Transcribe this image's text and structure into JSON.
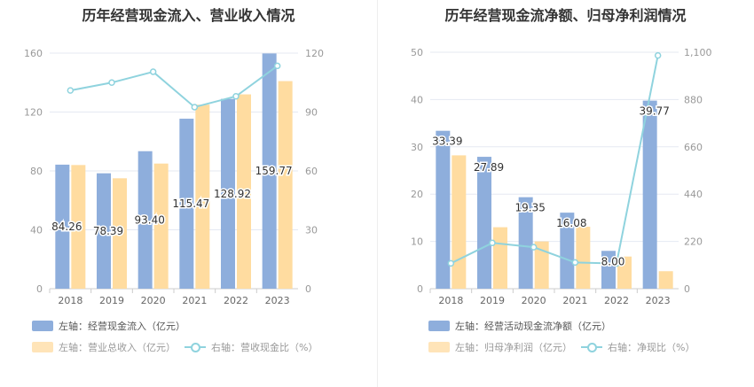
{
  "colors": {
    "bar1": "#8eaedc",
    "bar2": "#ffdca0",
    "line": "#8fd3de",
    "grid": "#e5e9f2",
    "axis": "#999999"
  },
  "left": {
    "title": "历年经营现金流入、营业收入情况",
    "legend": {
      "bar1": "左轴：经营现金流入（亿元）",
      "bar2": "左轴：营业总收入（亿元）",
      "line": "右轴：营收现金比（%）"
    }
  },
  "right": {
    "title": "历年经营现金流净额、归母净利润情况",
    "legend": {
      "bar1": "左轴：经营活动现金流净额（亿元）",
      "bar2": "左轴：归母净利润（亿元）",
      "line": "右轴：净现比（%）"
    }
  },
  "chart_data": [
    {
      "type": "bar",
      "categories": [
        "2018",
        "2019",
        "2020",
        "2021",
        "2022",
        "2023"
      ],
      "series": [
        {
          "name": "左轴：经营现金流入（亿元）",
          "axis": "left",
          "values": [
            84.26,
            78.39,
            93.4,
            115.47,
            128.92,
            159.77
          ],
          "labels": [
            "84.26",
            "78.39",
            "93.40",
            "115.47",
            "128.92",
            "159.77"
          ]
        },
        {
          "name": "左轴：营业总收入（亿元）",
          "axis": "left",
          "values": [
            84,
            75,
            85,
            125,
            132,
            141
          ]
        },
        {
          "name": "右轴：营收现金比（%）",
          "axis": "right",
          "type": "line",
          "values": [
            101,
            105,
            110.5,
            92.5,
            98,
            113.5
          ]
        }
      ],
      "left_axis": {
        "ylim": [
          0,
          160
        ],
        "ticks": [
          0,
          40,
          80,
          120,
          160
        ],
        "tick_labels": [
          "0",
          "40",
          "80",
          "120",
          "160"
        ]
      },
      "right_axis": {
        "ylim": [
          0,
          120
        ],
        "ticks": [
          0,
          30,
          60,
          90,
          120
        ],
        "tick_labels": [
          "0",
          "30",
          "60",
          "90",
          "120"
        ]
      }
    },
    {
      "type": "bar",
      "categories": [
        "2018",
        "2019",
        "2020",
        "2021",
        "2022",
        "2023"
      ],
      "series": [
        {
          "name": "左轴：经营活动现金流净额（亿元）",
          "axis": "left",
          "values": [
            33.39,
            27.89,
            19.35,
            16.08,
            8.0,
            39.77
          ],
          "labels": [
            "33.39",
            "27.89",
            "19.35",
            "16.08",
            "8.00",
            "39.77"
          ]
        },
        {
          "name": "左轴：归母净利润（亿元）",
          "axis": "left",
          "values": [
            28.2,
            13,
            10,
            13.1,
            6.8,
            3.7
          ]
        },
        {
          "name": "右轴：净现比（%）",
          "axis": "right",
          "type": "line",
          "values": [
            118,
            213,
            193,
            122,
            117,
            1085
          ]
        }
      ],
      "left_axis": {
        "ylim": [
          0,
          50
        ],
        "ticks": [
          0,
          10,
          20,
          30,
          40,
          50
        ],
        "tick_labels": [
          "0",
          "10",
          "20",
          "30",
          "40",
          "50"
        ]
      },
      "right_axis": {
        "ylim": [
          0,
          1100
        ],
        "ticks": [
          0,
          220,
          440,
          660,
          880,
          1100
        ],
        "tick_labels": [
          "0",
          "220",
          "440",
          "660",
          "880",
          "1,100"
        ]
      }
    }
  ]
}
